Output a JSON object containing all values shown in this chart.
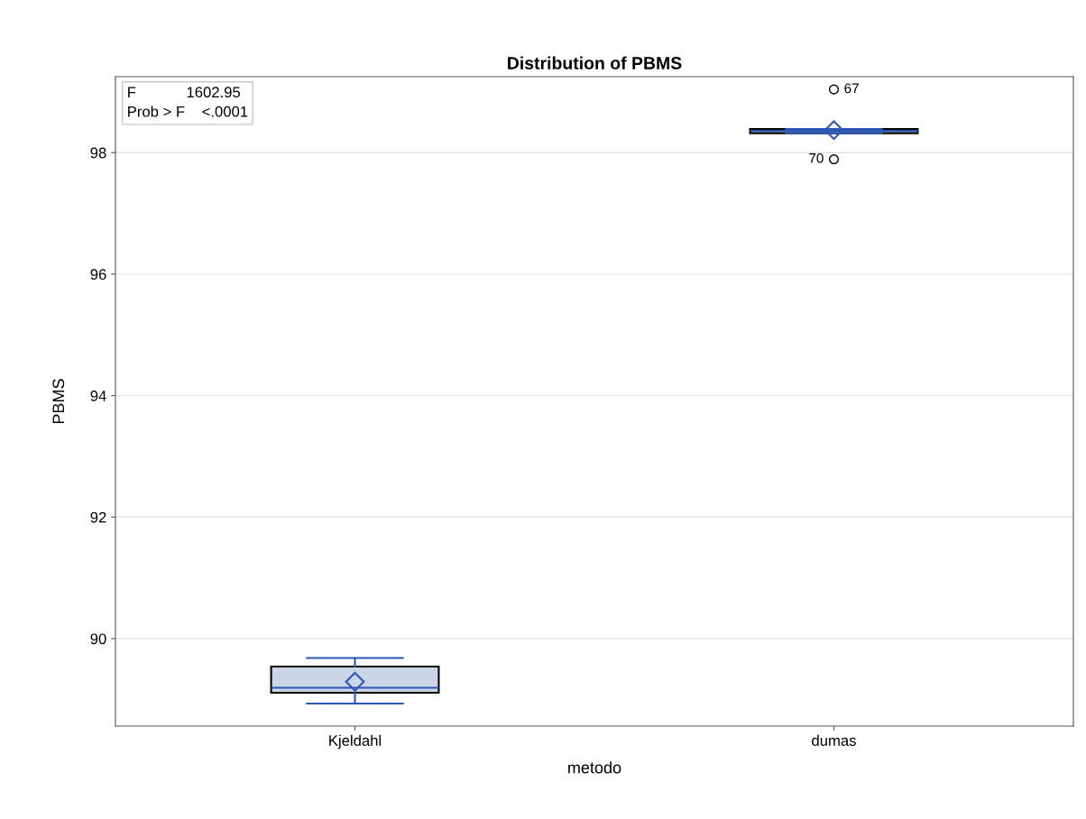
{
  "chart_data": {
    "type": "box",
    "title": "Distribution of PBMS",
    "xlabel": "metodo",
    "ylabel": "PBMS",
    "categories": [
      "Kjeldahl",
      "dumas"
    ],
    "boxes": [
      {
        "low": 88.93,
        "q1": 89.11,
        "median": 89.19,
        "q3": 89.54,
        "high": 89.68,
        "mean": 89.29
      },
      {
        "low": 98.32,
        "q1": 98.32,
        "median": 98.36,
        "q3": 98.39,
        "high": 98.39,
        "mean": 98.37,
        "outliers": [
          99.04,
          97.89
        ]
      }
    ],
    "color": "#cad5e5",
    "ylim": [
      88.56,
      99.25
    ],
    "yticks": [
      90,
      92,
      94,
      96,
      98
    ],
    "grid": "y",
    "annotations": [
      "F            1602.95",
      "Prob > F    <.0001",
      "67",
      "70"
    ]
  }
}
